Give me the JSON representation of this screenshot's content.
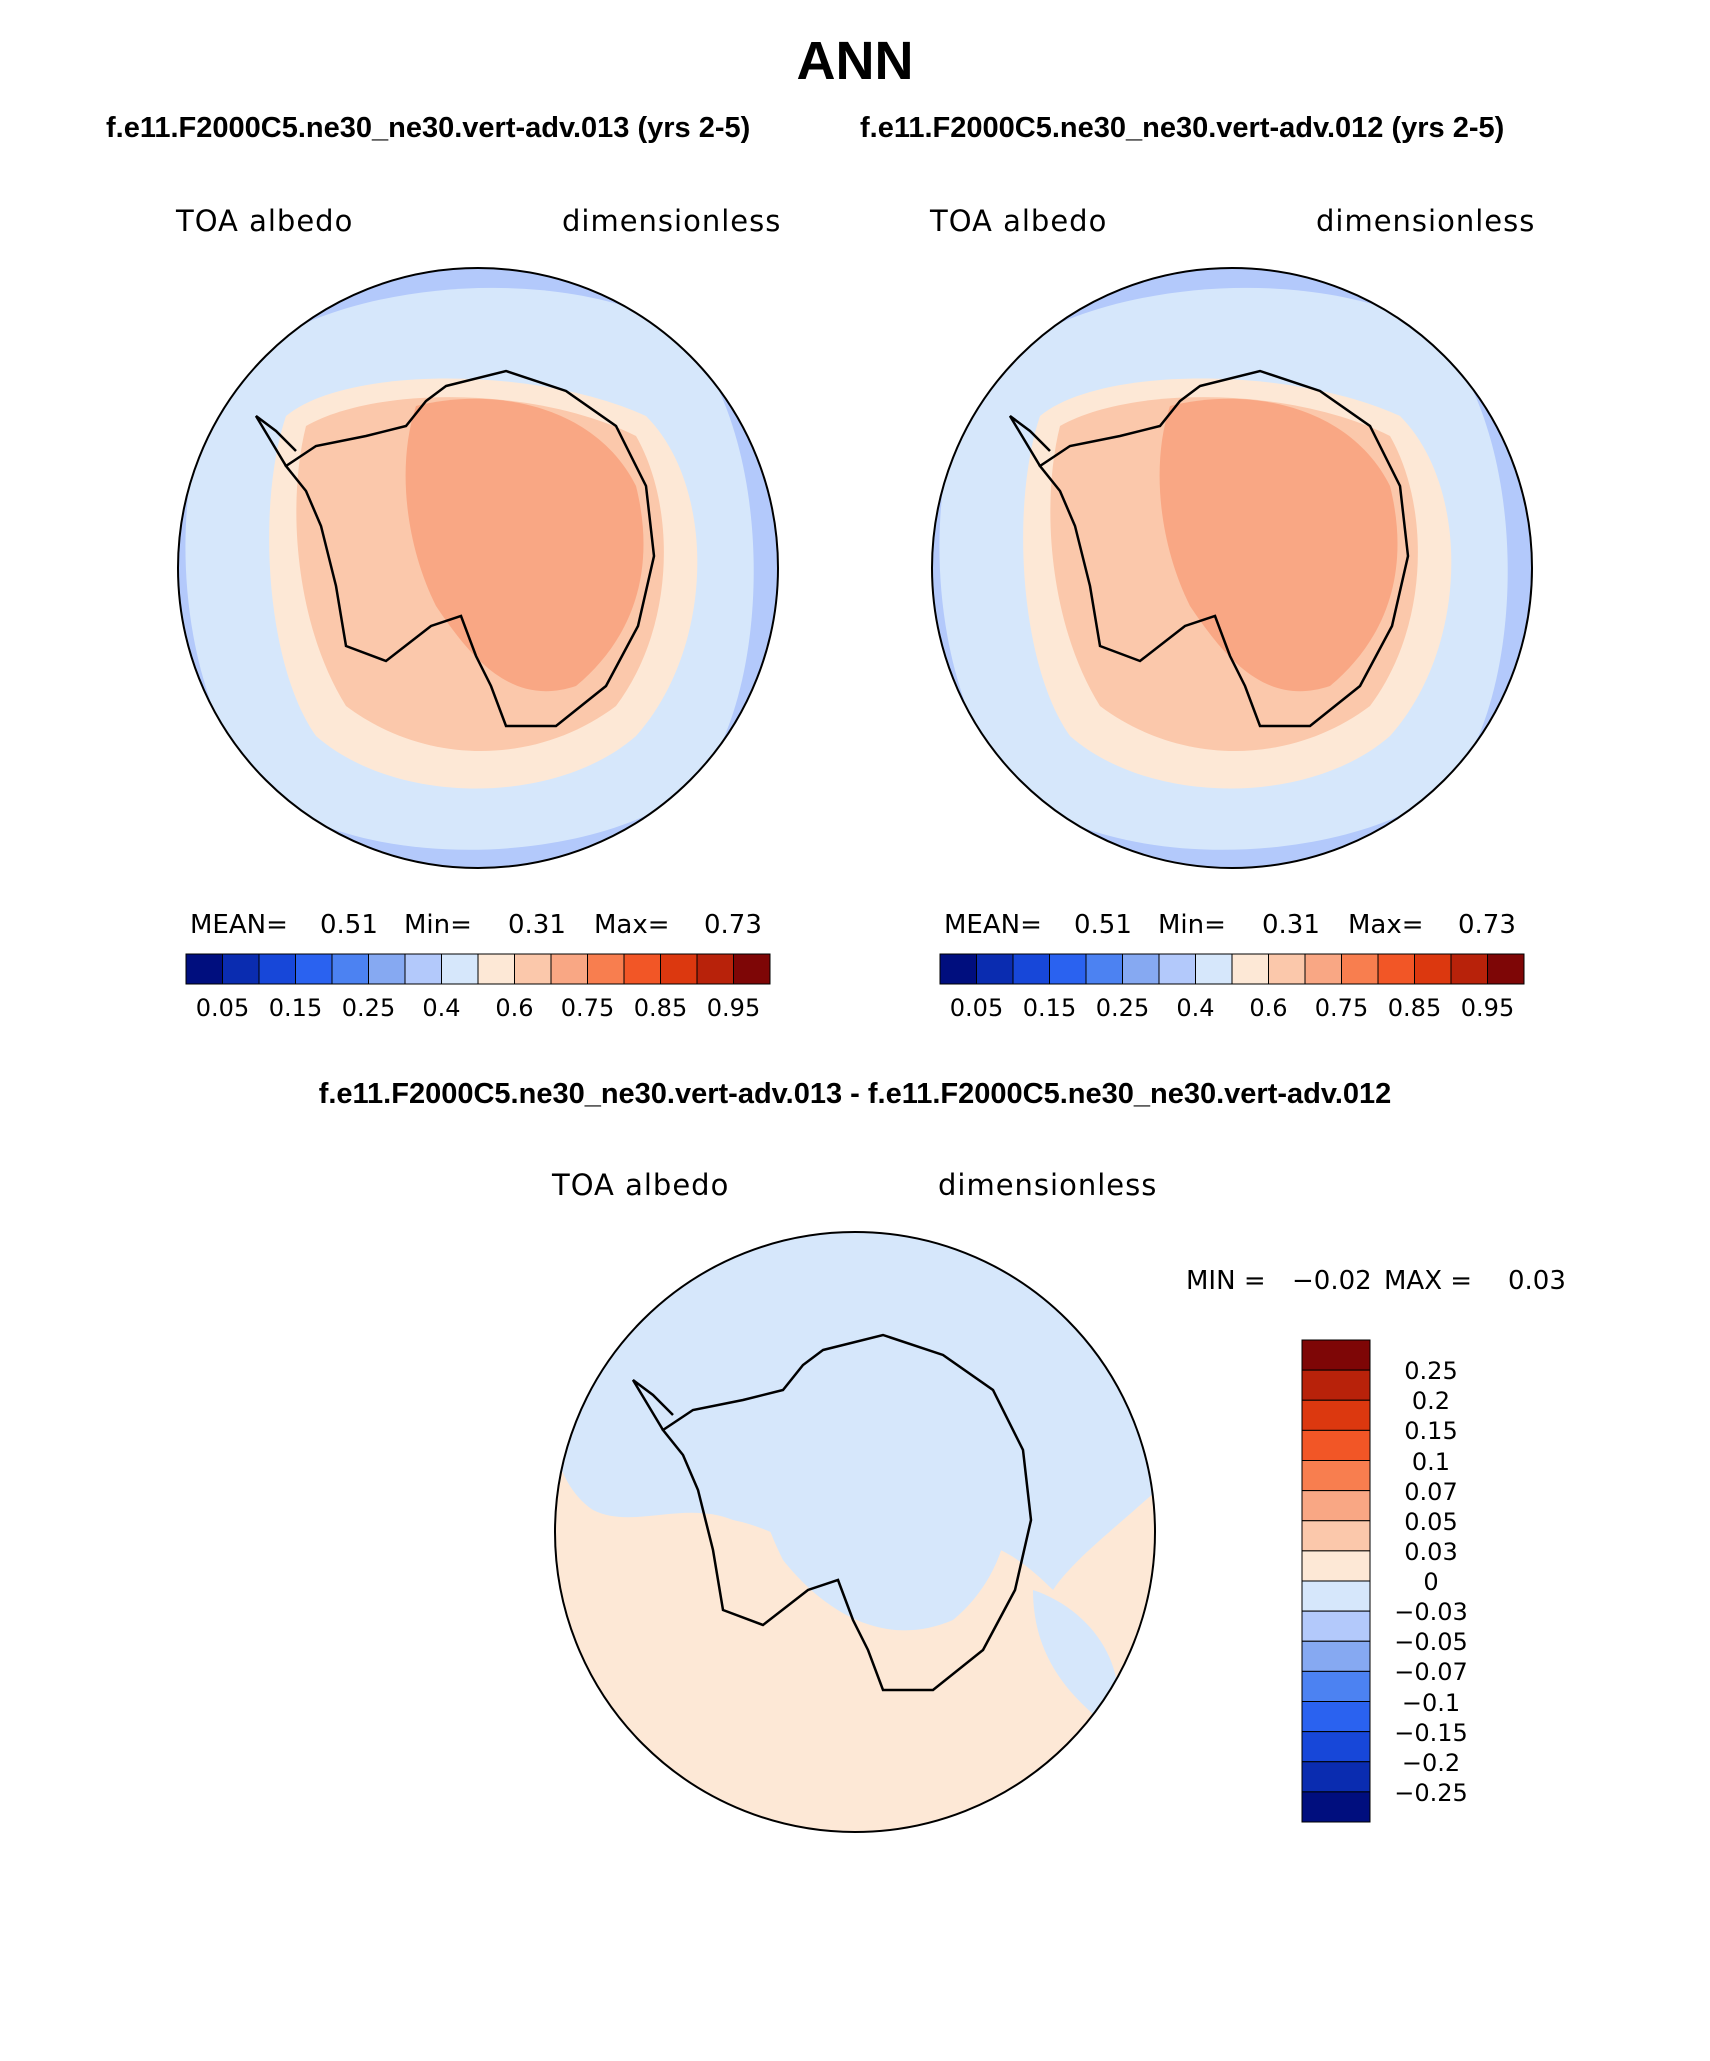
{
  "title": "ANN",
  "panels": [
    {
      "case_label": "f.e11.F2000C5.ne30_ne30.vert-adv.013 (yrs 2-5)",
      "variable": "TOA albedo",
      "units": "dimensionless",
      "stats": {
        "mean_label": "MEAN=",
        "mean": "0.51",
        "min_label": "Min=",
        "min": "0.31",
        "max_label": "Max=",
        "max": "0.73"
      },
      "colorbar_labels": [
        "0.05",
        "0.15",
        "0.25",
        "0.4",
        "0.6",
        "0.75",
        "0.85",
        "0.95"
      ]
    },
    {
      "case_label": "f.e11.F2000C5.ne30_ne30.vert-adv.012 (yrs 2-5)",
      "variable": "TOA albedo",
      "units": "dimensionless",
      "stats": {
        "mean_label": "MEAN=",
        "mean": "0.51",
        "min_label": "Min=",
        "min": "0.31",
        "max_label": "Max=",
        "max": "0.73"
      },
      "colorbar_labels": [
        "0.05",
        "0.15",
        "0.25",
        "0.4",
        "0.6",
        "0.75",
        "0.85",
        "0.95"
      ]
    }
  ],
  "diff": {
    "title": "f.e11.F2000C5.ne30_ne30.vert-adv.013 - f.e11.F2000C5.ne30_ne30.vert-adv.012",
    "variable": "TOA albedo",
    "units": "dimensionless",
    "stats": {
      "min_label": "MIN =",
      "min": "−0.02",
      "max_label": "MAX =",
      "max": "0.03"
    },
    "colorbar_labels": [
      "0.25",
      "0.2",
      "0.15",
      "0.1",
      "0.07",
      "0.05",
      "0.03",
      "0",
      "−0.03",
      "−0.05",
      "−0.07",
      "−0.1",
      "−0.15",
      "−0.2",
      "−0.25"
    ]
  },
  "colors": {
    "abs_scale": [
      "#000e7e",
      "#0a2cb0",
      "#1747d9",
      "#2a62f0",
      "#4c82f2",
      "#86a9f2",
      "#b3c9fb",
      "#d6e7fb",
      "#fde8d6",
      "#fbc8ab",
      "#f9a784",
      "#f87e4f",
      "#f25626",
      "#dc380f",
      "#b8220a",
      "#7e0606"
    ],
    "diff_scale": [
      "#7e0606",
      "#b8220a",
      "#dc380f",
      "#f25626",
      "#f87e4f",
      "#f9a784",
      "#fbc8ab",
      "#fde8d6",
      "#d6e7fb",
      "#b3c9fb",
      "#86a9f2",
      "#4c82f2",
      "#2a62f0",
      "#1747d9",
      "#0a2cb0",
      "#000e7e"
    ],
    "ocean_outer": "#b3c9fb",
    "ocean_inner": "#d6e7fb",
    "sea_ice": "#fde8d6",
    "coast_zone": "#fbc8ab",
    "plateau": "#f9a784",
    "coastline": "#000000"
  }
}
